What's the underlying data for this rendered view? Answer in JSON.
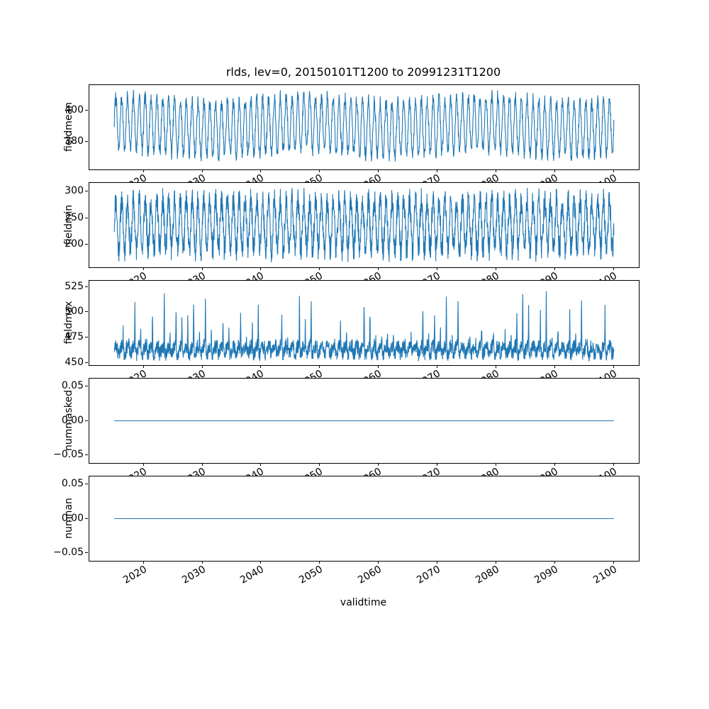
{
  "figure": {
    "background": "#ffffff",
    "title": "rlds, lev=0, 20150101T1200 to 20991231T1200",
    "xlabel": "validtime",
    "line_color": "#1f77b4"
  },
  "chart_data": {
    "type": "line",
    "title": "rlds, lev=0, 20150101T1200 to 20991231T1200",
    "xlabel": "validtime",
    "legend": "none",
    "grid": false,
    "x_range_data": [
      2015.0,
      2100.0
    ],
    "xlim": [
      2010.75,
      2104.25
    ],
    "xticks": [
      2020,
      2030,
      2040,
      2050,
      2060,
      2070,
      2080,
      2090,
      2100
    ],
    "xtick_labels": [
      "2020",
      "2030",
      "2040",
      "2050",
      "2060",
      "2070",
      "2080",
      "2090",
      "2100"
    ],
    "xtick_rotation_deg": 30,
    "subplots": [
      {
        "ylabel": "fieldmean",
        "ylim": [
          362.5,
          416
        ],
        "yticks": [
          380,
          400
        ],
        "ytick_labels": [
          "380",
          "400"
        ],
        "series": {
          "name": "fieldmean",
          "kind": "seasonal-noise",
          "base": 390,
          "seasonal_amplitude": 17,
          "noise_amplitude": 9,
          "slow_amplitude": 2,
          "samples_per_year": 24,
          "seed": 7,
          "approx_min": 366,
          "approx_max": 414
        }
      },
      {
        "ylabel": "fieldmin",
        "ylim": [
          158,
          316
        ],
        "yticks": [
          200,
          250,
          300
        ],
        "ytick_labels": [
          "200",
          "250",
          "300"
        ],
        "series": {
          "name": "fieldmin",
          "kind": "seasonal-noise",
          "base": 237,
          "seasonal_amplitude": 46,
          "noise_amplitude": 48,
          "slow_amplitude": 0,
          "samples_per_year": 30,
          "seed": 11,
          "approx_min": 168,
          "approx_max": 308
        }
      },
      {
        "ylabel": "fieldmax",
        "ylim": [
          448,
          531
        ],
        "yticks": [
          450,
          475,
          500,
          525
        ],
        "ytick_labels": [
          "450",
          "475",
          "500",
          "525"
        ],
        "series": {
          "name": "fieldmax",
          "kind": "spiky",
          "base": 463,
          "seasonal_amplitude": 4,
          "noise_amplitude": 14,
          "spike_min": 6,
          "spike_max": 58,
          "spike_width": 0.08,
          "samples_per_year": 30,
          "seed": 23,
          "approx_min": 452,
          "approx_max": 527
        }
      },
      {
        "ylabel": "nummasked",
        "ylim": [
          -0.0615,
          0.0615
        ],
        "yticks": [
          -0.05,
          0,
          0.05
        ],
        "ytick_labels": [
          "−0.05",
          "0.00",
          "0.05"
        ],
        "series": {
          "name": "nummasked",
          "kind": "constant",
          "value": 0
        }
      },
      {
        "ylabel": "numnan",
        "ylim": [
          -0.0615,
          0.0615
        ],
        "yticks": [
          -0.05,
          0,
          0.05
        ],
        "ytick_labels": [
          "−0.05",
          "0.00",
          "0.05"
        ],
        "series": {
          "name": "numnan",
          "kind": "constant",
          "value": 0
        }
      }
    ]
  }
}
